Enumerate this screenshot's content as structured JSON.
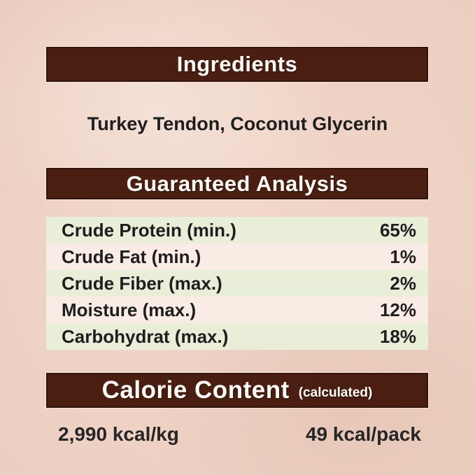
{
  "colors": {
    "background": "#f0d3c4",
    "bar_background": "#4a1e10",
    "bar_border": "#33140a",
    "bar_text": "#fdfcf8",
    "row_green": "#e9eed9",
    "row_light": "#f8ece5",
    "body_text": "#1e1e1e"
  },
  "sections": {
    "ingredients": {
      "title": "Ingredients",
      "items": "Turkey Tendon, Coconut Glycerin"
    },
    "guaranteed_analysis": {
      "title": "Guaranteed Analysis",
      "rows": [
        {
          "label": "Crude Protein (min.)",
          "value": "65%"
        },
        {
          "label": "Crude Fat (min.)",
          "value": "1%"
        },
        {
          "label": "Crude Fiber (max.)",
          "value": "2%"
        },
        {
          "label": "Moisture (max.)",
          "value": "12%"
        },
        {
          "label": "Carbohydrat (max.)",
          "value": "18%"
        }
      ]
    },
    "calorie_content": {
      "title": "Calorie Content",
      "subtitle": "(calculated)",
      "per_kg": "2,990 kcal/kg",
      "per_pack": "49 kcal/pack"
    }
  }
}
